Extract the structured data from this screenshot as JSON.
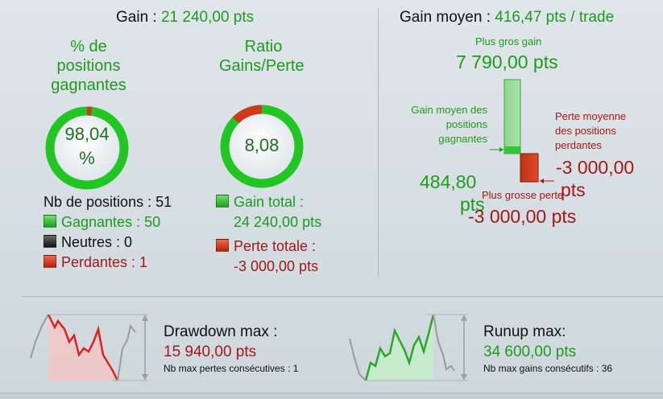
{
  "gain": {
    "label": "Gain : ",
    "value": "21 240,00 pts"
  },
  "pct_positions": {
    "label": [
      "% de",
      "positions",
      "gagnantes"
    ],
    "value_line1": "98,04",
    "value_line2": "%",
    "ratio_fill": 0.9804
  },
  "ratio": {
    "label": [
      "Ratio",
      "Gains/Perte"
    ],
    "value": "8,08"
  },
  "positions": {
    "total_label": "Nb de positions : ",
    "total_value": "51",
    "gagnantes": "Gagnantes : 50",
    "neutres": "Neutres : 0",
    "perdantes": "Perdantes : 1"
  },
  "totals": {
    "gain_label": "Gain total :",
    "gain_value": "24 240,00 pts",
    "perte_label": "Perte totale :",
    "perte_value": "-3 000,00 pts"
  },
  "gain_moyen": {
    "label": "Gain moyen : ",
    "value": "416,47 pts / trade",
    "plus_gros_gain_label": "Plus gros gain",
    "plus_gros_gain_value": "7 790,00 pts",
    "gain_moyen_positions_label": [
      "Gain moyen des",
      "positions",
      "gagnantes"
    ],
    "gain_moyen_positions_value": "484,80",
    "gain_moyen_positions_unit": "pts",
    "perte_moyenne_label": [
      "Perte moyenne",
      "des positions",
      "perdantes"
    ],
    "perte_moyenne_value": "-3 000,00",
    "perte_moyenne_unit": "pts",
    "plus_grosse_perte_label": "Plus grosse perte",
    "plus_grosse_perte_value": "-3 000,00 pts"
  },
  "drawdown": {
    "title": "Drawdown max :",
    "value": "15 940,00 pts",
    "sub": "Nb max pertes consécutives : 1"
  },
  "runup": {
    "title": "Runup max:",
    "value": "34 600,00 pts",
    "sub": "Nb max gains consécutifs : 36"
  },
  "colors": {
    "green": "#1f9a1f",
    "red": "#a31818",
    "ring_green": "#22c622",
    "ring_red": "#d03a1a"
  }
}
